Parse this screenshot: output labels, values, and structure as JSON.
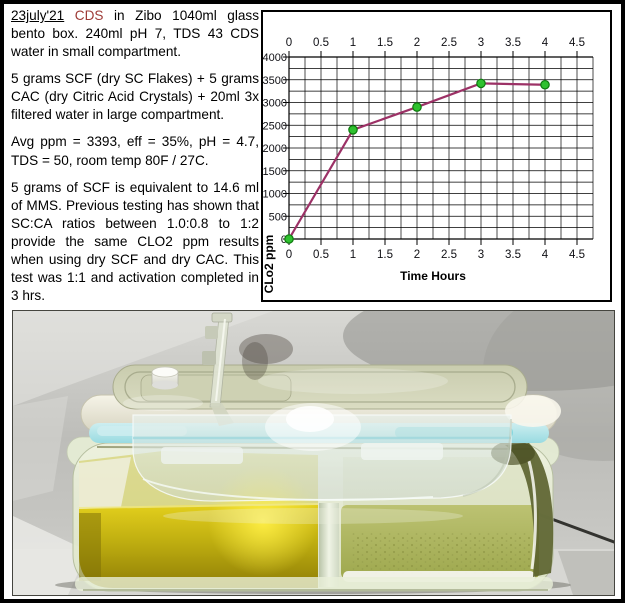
{
  "page": {
    "background": "#ffffff",
    "border_color": "#000000"
  },
  "notes": {
    "accent_red": "#9e3a36",
    "p1_date": "23july'21",
    "p1_cds": "CDS",
    "p1_rest": "in Zibo 1040ml glass bento box. 240ml pH 7, TDS 43 CDS water in small compartment.",
    "p2": "5 grams SCF (dry SC Flakes) + 5 grams CAC (dry Citric Acid Crystals) + 20ml 3x filtered water in large compartment.",
    "p3": "Avg ppm = 3393, eff = 35%, pH = 4.7, TDS = 50, room temp 80F / 27C.",
    "p4": "5 grams of SCF is equivalent to 14.6 ml of MMS. Previous testing has shown that SC:CA ratios between 1.0:0.8 to 1:2 provide the same CLO2 ppm results when using dry SCF and dry CAC. This test was 1:1 and activation completed in 3 hrs."
  },
  "chart_data": {
    "type": "line",
    "title": "",
    "xlabel": "Time Hours",
    "ylabel": "CLo2 ppm",
    "x": [
      0,
      1,
      2,
      3,
      4
    ],
    "y": [
      0,
      2400,
      2900,
      3420,
      3390
    ],
    "xlim": [
      0,
      4.5
    ],
    "ylim": [
      0,
      4000
    ],
    "x_ticks": [
      0,
      0.5,
      1,
      1.5,
      2,
      2.5,
      3,
      3.5,
      4,
      4.5
    ],
    "y_ticks": [
      0,
      500,
      1000,
      1500,
      2000,
      2500,
      3000,
      3500,
      4000
    ],
    "minor_x_step": 0.25,
    "minor_y_step": 250,
    "grid_x_max": 4.75,
    "grid": "on",
    "x_tick_labels_position": "top and bottom",
    "legend": "none",
    "line_color": "#9c3166",
    "marker_fill": "#2fc12f",
    "marker_edge": "#0d7a0d"
  },
  "photo": {
    "alt": "glass two-compartment bento box with white-rim lid, blue gasket, clear front flap, yellow CDS solution in large left compartment",
    "palette": {
      "background_grey": "#c4c4c0",
      "liquid_yellow": "#c7b50e",
      "liquid_highlight": "#ffef45",
      "gasket_blue": "#7cd5dd",
      "lid_cream": "#e9e7d8",
      "right_compartment_green": "#acb25c",
      "glass_tint": "#e3ead2",
      "white_strip": "#f4f4ee"
    }
  }
}
